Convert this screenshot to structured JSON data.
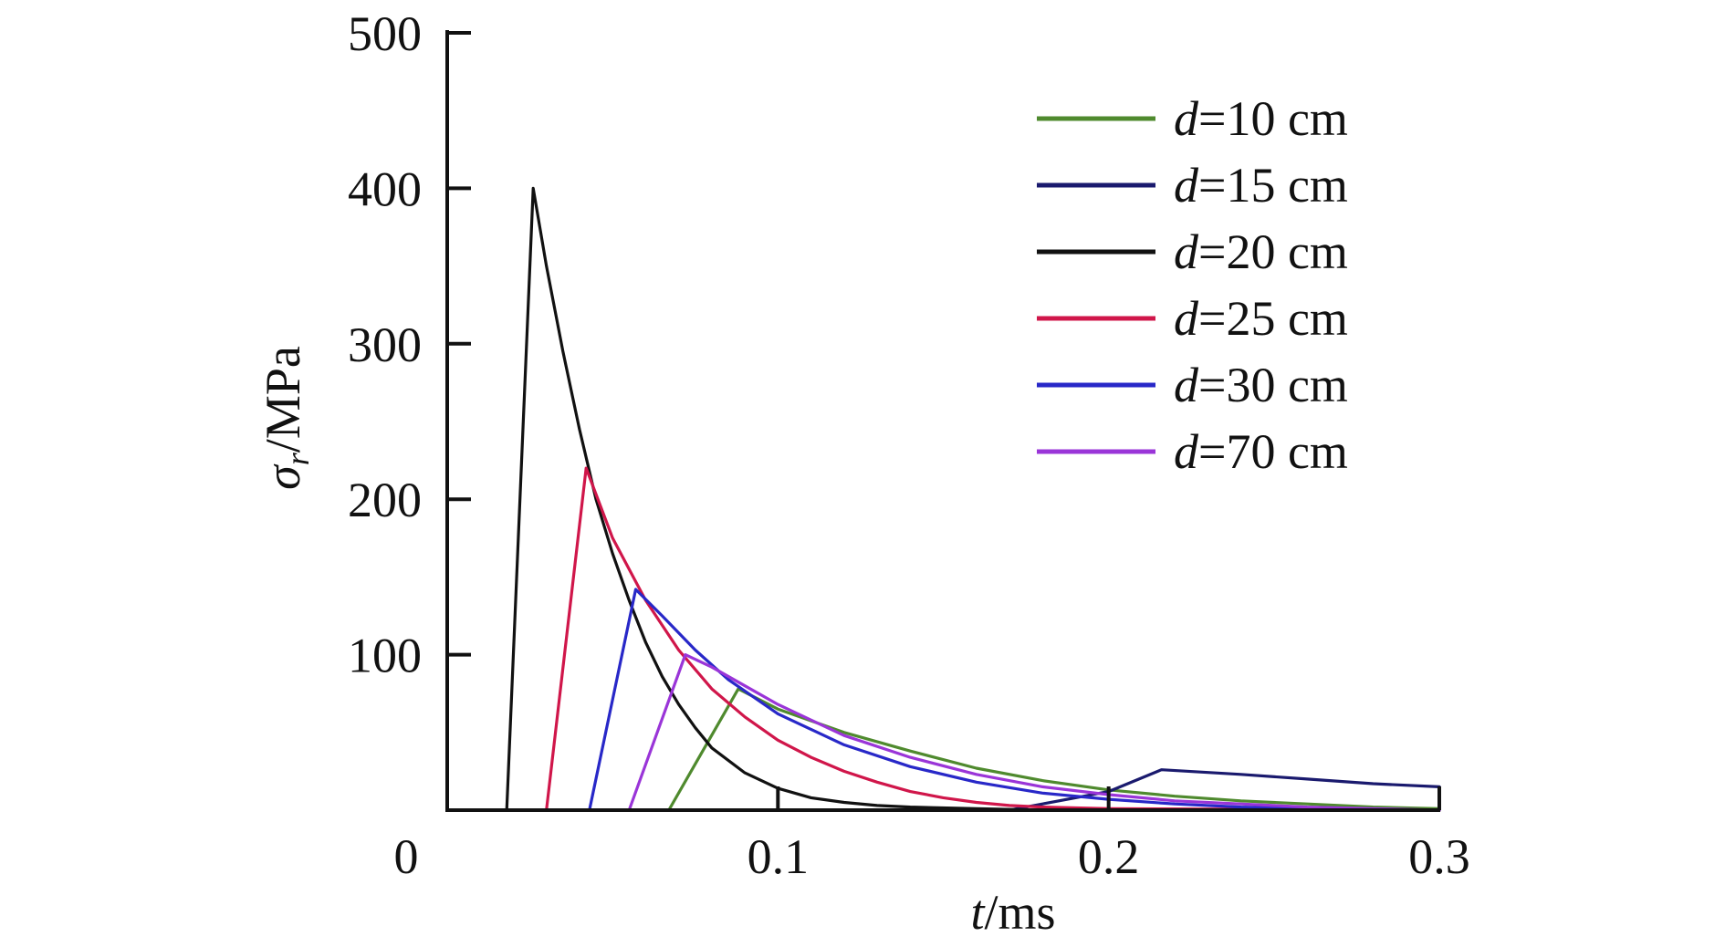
{
  "chart_data": {
    "type": "line",
    "xlabel": {
      "var": "t",
      "unit": "/ms"
    },
    "ylabel": {
      "var": "σ",
      "sub": "r",
      "unit": "/MPa"
    },
    "xlim": [
      0,
      0.3
    ],
    "ylim": [
      0,
      500
    ],
    "x_ticks": [
      "0",
      "0.1",
      "0.2",
      "0.3"
    ],
    "x_tick_values": [
      0,
      0.1,
      0.2,
      0.3
    ],
    "y_ticks": [
      "100",
      "200",
      "300",
      "400",
      "500"
    ],
    "y_tick_values": [
      100,
      200,
      300,
      400,
      500
    ],
    "grid": false,
    "legend_position": "top-right",
    "series": [
      {
        "name": "d=10 cm",
        "legend_var": "d",
        "legend_value": "=10 cm",
        "color": "#4f8a2e",
        "points": [
          [
            0.067,
            0
          ],
          [
            0.088,
            78
          ],
          [
            0.1,
            65
          ],
          [
            0.12,
            50
          ],
          [
            0.14,
            38
          ],
          [
            0.16,
            27
          ],
          [
            0.18,
            19
          ],
          [
            0.2,
            13
          ],
          [
            0.22,
            9
          ],
          [
            0.24,
            6
          ],
          [
            0.26,
            4
          ],
          [
            0.28,
            2
          ],
          [
            0.3,
            1
          ]
        ]
      },
      {
        "name": "d=15 cm",
        "legend_var": "d",
        "legend_value": "=15 cm",
        "color": "#1a1a6e",
        "points": [
          [
            0.17,
            0
          ],
          [
            0.19,
            8
          ],
          [
            0.2,
            12
          ],
          [
            0.216,
            26
          ],
          [
            0.24,
            23
          ],
          [
            0.26,
            20
          ],
          [
            0.28,
            17
          ],
          [
            0.3,
            15
          ]
        ]
      },
      {
        "name": "d=20 cm",
        "legend_var": "d",
        "legend_value": "=20 cm",
        "color": "#111111",
        "points": [
          [
            0.018,
            0
          ],
          [
            0.026,
            400
          ],
          [
            0.03,
            350
          ],
          [
            0.035,
            295
          ],
          [
            0.04,
            245
          ],
          [
            0.045,
            200
          ],
          [
            0.05,
            165
          ],
          [
            0.055,
            135
          ],
          [
            0.06,
            108
          ],
          [
            0.065,
            86
          ],
          [
            0.07,
            68
          ],
          [
            0.075,
            53
          ],
          [
            0.08,
            40
          ],
          [
            0.09,
            24
          ],
          [
            0.1,
            14
          ],
          [
            0.11,
            8
          ],
          [
            0.12,
            5
          ],
          [
            0.13,
            3
          ],
          [
            0.14,
            2
          ],
          [
            0.16,
            1
          ],
          [
            0.18,
            0
          ],
          [
            0.3,
            0
          ]
        ]
      },
      {
        "name": "d=25 cm",
        "legend_var": "d",
        "legend_value": "=25 cm",
        "color": "#d0164a",
        "points": [
          [
            0.03,
            0
          ],
          [
            0.042,
            220
          ],
          [
            0.05,
            175
          ],
          [
            0.06,
            135
          ],
          [
            0.07,
            103
          ],
          [
            0.08,
            78
          ],
          [
            0.09,
            60
          ],
          [
            0.1,
            45
          ],
          [
            0.11,
            34
          ],
          [
            0.12,
            25
          ],
          [
            0.13,
            18
          ],
          [
            0.14,
            12
          ],
          [
            0.15,
            8
          ],
          [
            0.16,
            5
          ],
          [
            0.17,
            3
          ],
          [
            0.18,
            2
          ],
          [
            0.2,
            1
          ],
          [
            0.3,
            0
          ]
        ]
      },
      {
        "name": "d=30 cm",
        "legend_var": "d",
        "legend_value": "=30 cm",
        "color": "#2828c8",
        "points": [
          [
            0.043,
            0
          ],
          [
            0.057,
            142
          ],
          [
            0.065,
            125
          ],
          [
            0.075,
            103
          ],
          [
            0.085,
            84
          ],
          [
            0.1,
            62
          ],
          [
            0.12,
            42
          ],
          [
            0.14,
            28
          ],
          [
            0.16,
            18
          ],
          [
            0.18,
            11
          ],
          [
            0.2,
            7
          ],
          [
            0.22,
            4
          ],
          [
            0.24,
            2
          ],
          [
            0.26,
            1
          ],
          [
            0.3,
            0
          ]
        ]
      },
      {
        "name": "d=70 cm",
        "legend_var": "d",
        "legend_value": "=70 cm",
        "color": "#9a35d8",
        "points": [
          [
            0.055,
            0
          ],
          [
            0.072,
            100
          ],
          [
            0.08,
            92
          ],
          [
            0.09,
            80
          ],
          [
            0.1,
            68
          ],
          [
            0.12,
            48
          ],
          [
            0.14,
            34
          ],
          [
            0.16,
            23
          ],
          [
            0.18,
            15
          ],
          [
            0.2,
            10
          ],
          [
            0.22,
            6
          ],
          [
            0.24,
            4
          ],
          [
            0.26,
            2
          ],
          [
            0.28,
            1
          ],
          [
            0.3,
            0
          ]
        ]
      }
    ]
  }
}
